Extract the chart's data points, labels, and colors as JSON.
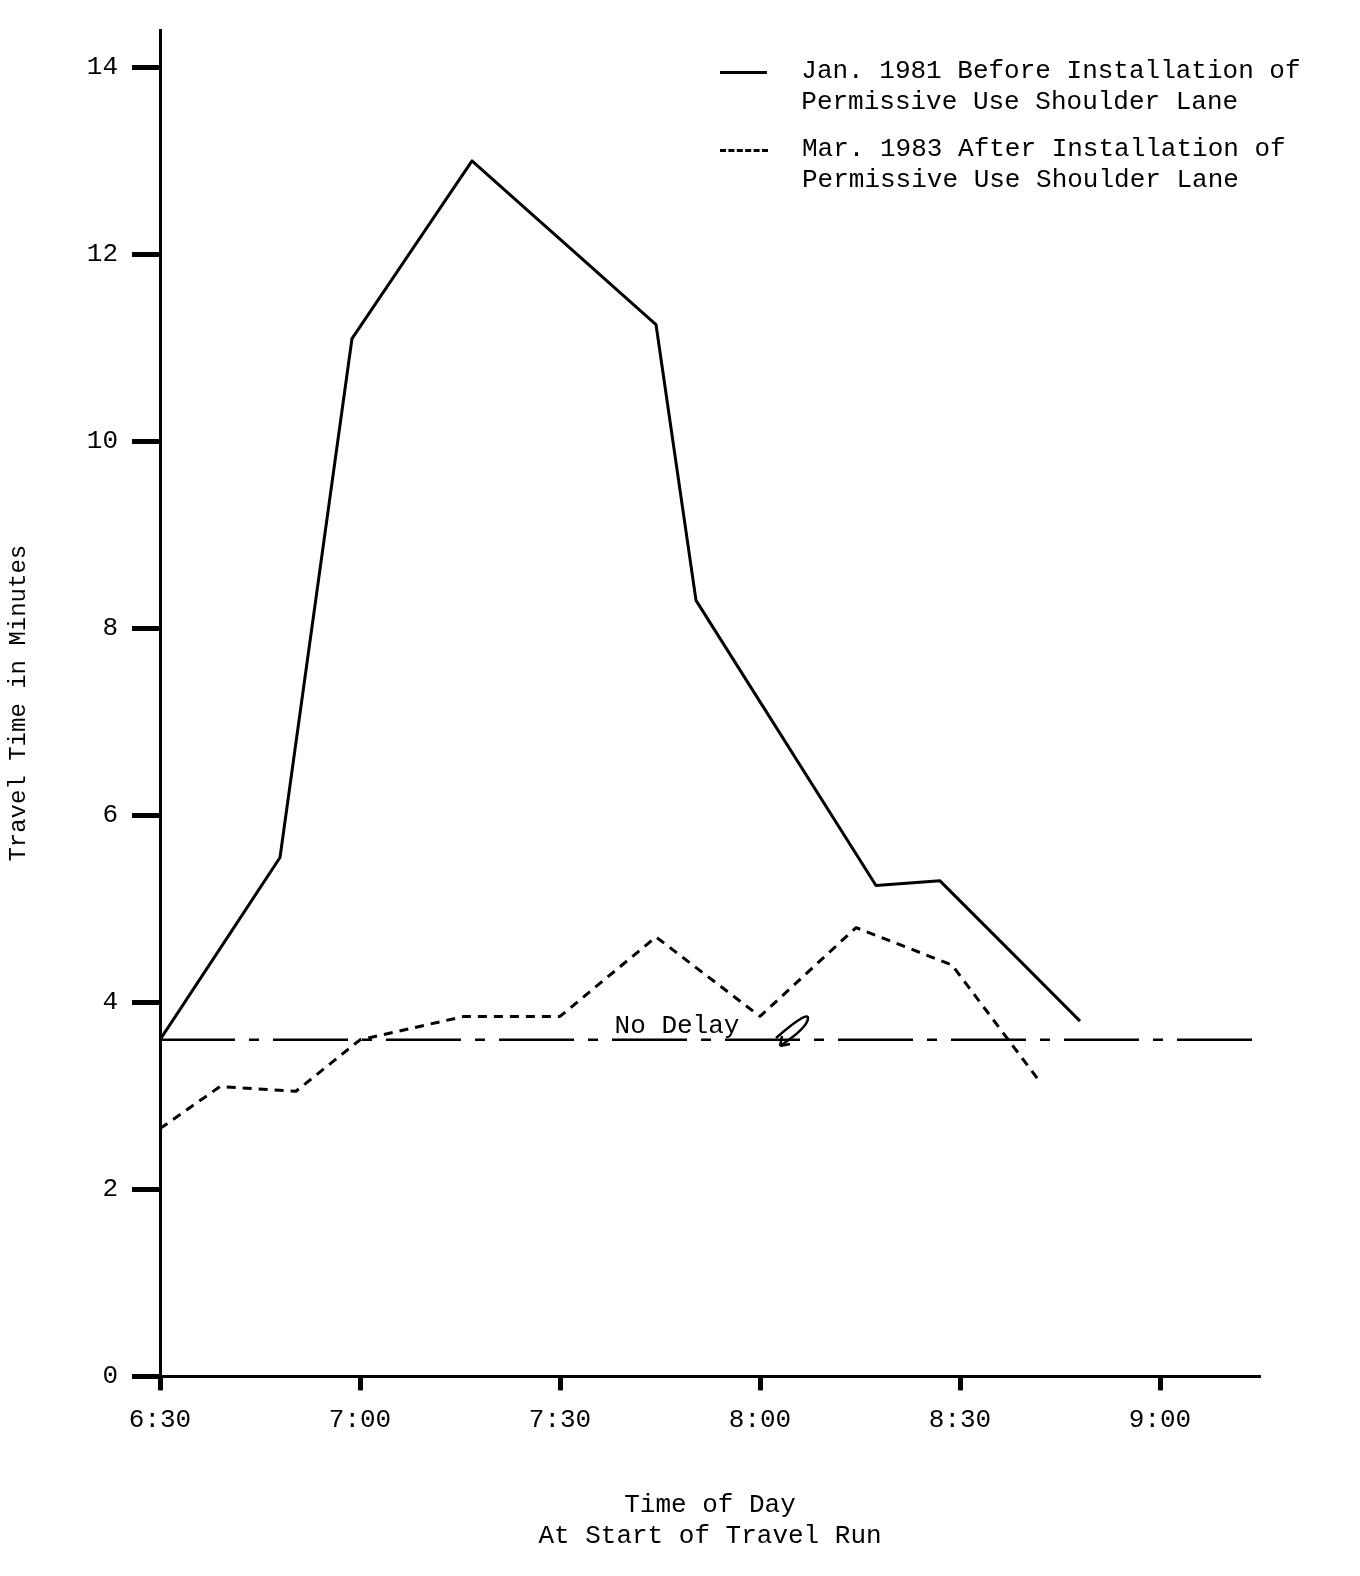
{
  "chart_data": {
    "type": "line",
    "xlabel": "Time of Day\nAt Start of Travel Run",
    "ylabel": "Travel Time in Minutes",
    "xlim": [
      6.5,
      9.25
    ],
    "xticks": [
      {
        "value": 6.5,
        "label": "6:30"
      },
      {
        "value": 7,
        "label": "7:00"
      },
      {
        "value": 7.5,
        "label": "7:30"
      },
      {
        "value": 8,
        "label": "8:00"
      },
      {
        "value": 8.5,
        "label": "8:30"
      },
      {
        "value": 9,
        "label": "9:00"
      }
    ],
    "ylim": [
      0,
      14.4
    ],
    "yticks": [
      0,
      2,
      4,
      6,
      8,
      10,
      12,
      14
    ],
    "legend": "top right",
    "marker": "none",
    "series": [
      {
        "name": "Jan. 1981 Before Installation of Permissive Use Shoulder Lane",
        "color": "#000000",
        "line_style": "solid",
        "x": [
          6.5,
          6.8,
          6.98,
          7.28,
          7.74,
          7.84,
          8.29,
          8.45,
          8.8
        ],
        "values": [
          3.6,
          5.55,
          11.1,
          13.0,
          11.25,
          8.3,
          5.25,
          5.3,
          3.8
        ]
      },
      {
        "name": "Mar. 1983 After Installation of Permissive Use Shoulder Lane",
        "color": "#000000",
        "line_style": "dashed",
        "x": [
          6.5,
          6.65,
          6.84,
          7.0,
          7.26,
          7.5,
          7.74,
          8.0,
          8.24,
          8.48,
          8.7
        ],
        "values": [
          2.65,
          3.1,
          3.05,
          3.6,
          3.85,
          3.85,
          4.7,
          3.85,
          4.8,
          4.4,
          3.15
        ]
      }
    ],
    "ref_lines": [
      {
        "axis": "y",
        "value": 3.6,
        "label": "No Delay",
        "line_style": "dashed",
        "color": "#000000"
      }
    ]
  }
}
